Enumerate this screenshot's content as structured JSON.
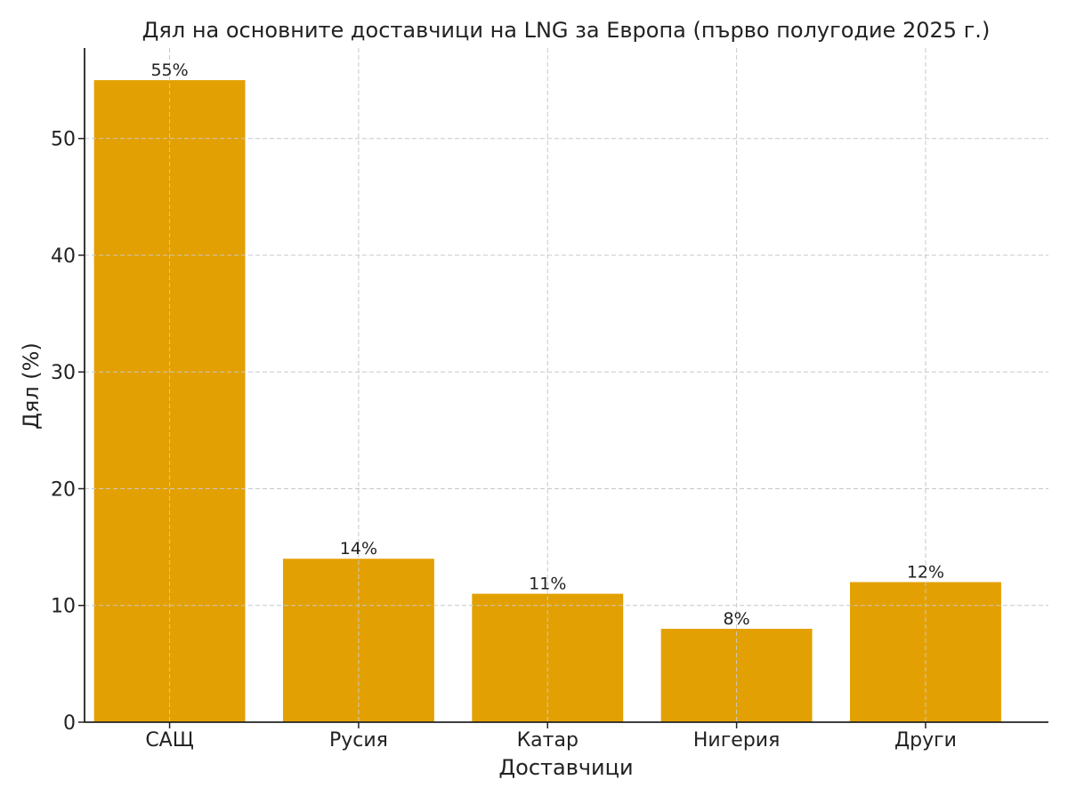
{
  "chart_data": {
    "type": "bar",
    "title": "Дял на основните доставчици на LNG за Европа (първо полугодие 2025 г.)",
    "xlabel": "Доставчици",
    "ylabel": "Дял (%)",
    "categories": [
      "САЩ",
      "Русия",
      "Катар",
      "Нигерия",
      "Други"
    ],
    "values": [
      55,
      14,
      11,
      8,
      12
    ],
    "data_labels": [
      "55%",
      "14%",
      "11%",
      "8%",
      "12%"
    ],
    "ylim": [
      0,
      57.75
    ],
    "yticks": [
      0,
      10,
      20,
      30,
      40,
      50
    ],
    "grid": true,
    "bar_color": "#E3A002"
  }
}
